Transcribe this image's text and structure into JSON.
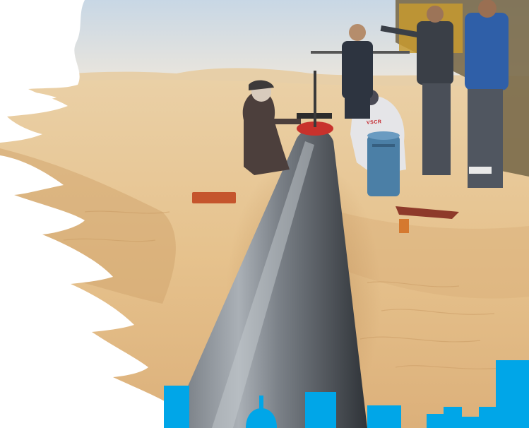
{
  "photo": {
    "subject": "pipeline-welding-in-desert",
    "printed_text": {
      "vest_logo": "VSCR"
    }
  },
  "colors": {
    "sky_top": "#cfdbe6",
    "sky_bottom": "#e9e6df",
    "sand_light": "#efd3a8",
    "sand_mid": "#e3bc85",
    "sand_shadow": "#c99a63",
    "pipe_dark": "#3b3f45",
    "pipe_light": "#9aa0a6",
    "brand_blue": "#00a6e8",
    "torn_edge": "#ffffff"
  },
  "icons": {
    "skyline": "city-skyline-icon",
    "dome": "dome-building-icon"
  }
}
